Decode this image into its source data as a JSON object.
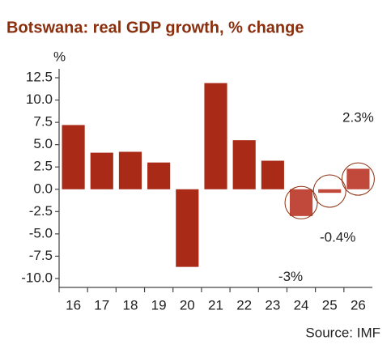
{
  "chart_data": {
    "type": "bar",
    "title": "Botswana: real GDP growth, % change",
    "y_unit": "%",
    "source": "Source: IMF",
    "categories": [
      "16",
      "17",
      "18",
      "19",
      "20",
      "21",
      "22",
      "23",
      "24",
      "25",
      "26"
    ],
    "values": [
      7.2,
      4.1,
      4.2,
      3.0,
      -8.7,
      11.9,
      5.5,
      3.2,
      -3,
      -0.4,
      2.3
    ],
    "value_labels": [
      null,
      null,
      null,
      null,
      null,
      null,
      null,
      null,
      "-3%",
      "-0.4%",
      "2.3%"
    ],
    "colors": [
      "#a92b17",
      "#a92b17",
      "#a92b17",
      "#a92b17",
      "#a92b17",
      "#a92b17",
      "#a92b17",
      "#a92b17",
      "#c1493b",
      "#c1493b",
      "#c1493b"
    ],
    "ylim": [
      -11,
      13.5
    ],
    "yticks": [
      12.5,
      {
        "value": 10,
        "label": "10.0"
      },
      7.5,
      {
        "value": 5,
        "label": "5.0"
      },
      2.5,
      {
        "value": 0,
        "label": "0.0"
      },
      -2.5,
      {
        "value": -5,
        "label": "-5.0"
      },
      -7.5,
      {
        "value": -10,
        "label": "-10.0"
      }
    ]
  }
}
